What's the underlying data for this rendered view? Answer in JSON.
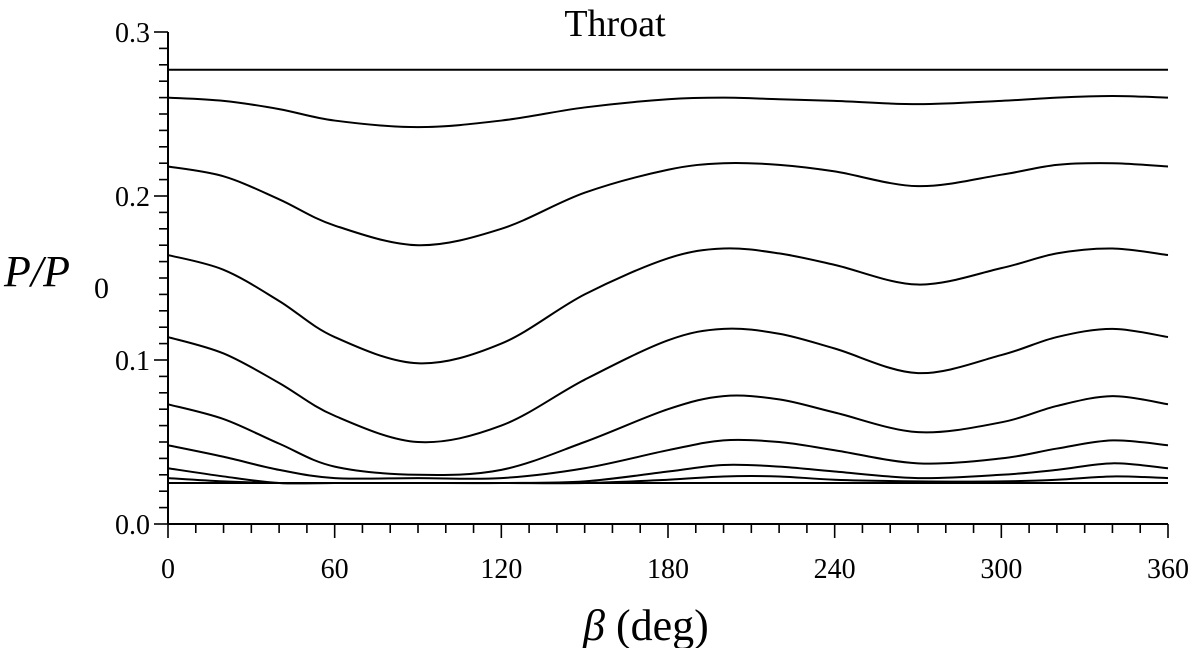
{
  "chart_data": {
    "type": "line",
    "title": "Throat",
    "xlabel_symbol": "β",
    "xlabel_unit": "(deg)",
    "ylabel_base": "P/P",
    "ylabel_sub": "0",
    "xlim": [
      0,
      360
    ],
    "ylim": [
      0.0,
      0.3
    ],
    "xticks": [
      0,
      60,
      120,
      180,
      240,
      300,
      360
    ],
    "xtick_labels": [
      "0",
      "60",
      "120",
      "180",
      "240",
      "300",
      "360"
    ],
    "xminor_step": 10,
    "yticks": [
      0.0,
      0.1,
      0.2,
      0.3
    ],
    "ytick_labels": [
      "0.0",
      "0.1",
      "0.2",
      "0.3"
    ],
    "yminor_step": 0.01,
    "grid": false,
    "legend": "none",
    "x": [
      0,
      20,
      40,
      60,
      90,
      120,
      150,
      180,
      200,
      220,
      240,
      270,
      300,
      320,
      340,
      360
    ],
    "series": [
      {
        "values": [
          0.277,
          0.277,
          0.277,
          0.277,
          0.277,
          0.277,
          0.277,
          0.277,
          0.277,
          0.277,
          0.277,
          0.277,
          0.277,
          0.277,
          0.277,
          0.277
        ]
      },
      {
        "values": [
          0.26,
          0.258,
          0.253,
          0.246,
          0.242,
          0.246,
          0.254,
          0.259,
          0.26,
          0.259,
          0.258,
          0.256,
          0.258,
          0.26,
          0.261,
          0.26
        ]
      },
      {
        "values": [
          0.218,
          0.212,
          0.198,
          0.182,
          0.17,
          0.18,
          0.202,
          0.216,
          0.22,
          0.219,
          0.215,
          0.206,
          0.213,
          0.219,
          0.22,
          0.218
        ]
      },
      {
        "values": [
          0.164,
          0.155,
          0.136,
          0.114,
          0.098,
          0.11,
          0.14,
          0.162,
          0.168,
          0.165,
          0.158,
          0.146,
          0.156,
          0.165,
          0.168,
          0.164
        ]
      },
      {
        "values": [
          0.114,
          0.104,
          0.086,
          0.066,
          0.05,
          0.06,
          0.088,
          0.112,
          0.119,
          0.116,
          0.107,
          0.092,
          0.103,
          0.114,
          0.119,
          0.114
        ]
      },
      {
        "values": [
          0.073,
          0.064,
          0.049,
          0.035,
          0.03,
          0.033,
          0.05,
          0.07,
          0.078,
          0.076,
          0.068,
          0.056,
          0.062,
          0.072,
          0.078,
          0.073
        ]
      },
      {
        "values": [
          0.048,
          0.041,
          0.033,
          0.028,
          0.028,
          0.028,
          0.034,
          0.045,
          0.051,
          0.05,
          0.045,
          0.037,
          0.04,
          0.046,
          0.051,
          0.048
        ]
      },
      {
        "values": [
          0.034,
          0.029,
          0.025,
          0.025,
          0.025,
          0.025,
          0.026,
          0.032,
          0.036,
          0.035,
          0.032,
          0.028,
          0.03,
          0.033,
          0.037,
          0.034
        ]
      },
      {
        "values": [
          0.028,
          0.026,
          0.025,
          0.025,
          0.025,
          0.025,
          0.025,
          0.027,
          0.029,
          0.029,
          0.027,
          0.026,
          0.026,
          0.027,
          0.029,
          0.028
        ]
      },
      {
        "values": [
          0.025,
          0.025,
          0.025,
          0.025,
          0.025,
          0.025,
          0.025,
          0.025,
          0.025,
          0.025,
          0.025,
          0.025,
          0.025,
          0.025,
          0.025,
          0.025
        ]
      }
    ]
  }
}
